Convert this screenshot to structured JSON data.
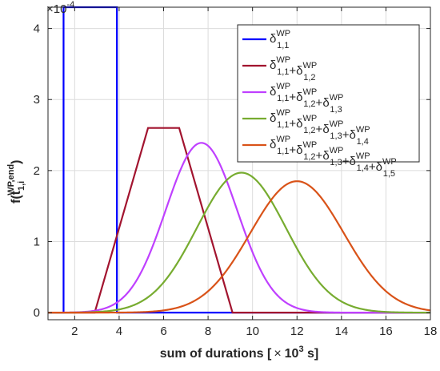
{
  "chart_data": {
    "type": "line",
    "title": "",
    "xlabel": {
      "prefix": "sum of durations [",
      "times": "×",
      "base": "10",
      "exp": "3",
      "suffix": " s]"
    },
    "ylabel": {
      "f": "f(t",
      "sub": "1,i",
      "sup": "WP,end",
      "close": ")"
    },
    "y_exponent": {
      "label": "×10",
      "exp": "-4"
    },
    "xlim": [
      0.8,
      18
    ],
    "ylim": [
      -0.1,
      4.3
    ],
    "xticks": [
      2,
      4,
      6,
      8,
      10,
      12,
      14,
      16,
      18
    ],
    "yticks": [
      0,
      1,
      2,
      3,
      4
    ],
    "grid": true,
    "legend_position": "top-right",
    "series": [
      {
        "shape": "uniform",
        "a": 1.5,
        "b": 3.9,
        "color": "#0000ff",
        "legend": [
          [
            "1,1"
          ]
        ]
      },
      {
        "shape": "trapezoid",
        "points": [
          [
            0.8,
            0
          ],
          [
            2.9,
            0
          ],
          [
            5.3,
            2.6
          ],
          [
            6.7,
            2.6
          ],
          [
            9.1,
            0
          ],
          [
            18,
            0
          ]
        ],
        "color": "#a2142f",
        "legend": [
          [
            "1,1"
          ],
          [
            "1,2"
          ]
        ]
      },
      {
        "shape": "smooth",
        "mean": 7.7,
        "sd": 1.6,
        "peak": 2.39,
        "color": "#bf40ff",
        "legend": [
          [
            "1,1"
          ],
          [
            "1,2"
          ],
          [
            "1,3"
          ]
        ]
      },
      {
        "shape": "smooth",
        "mean": 9.5,
        "sd": 2.0,
        "peak": 1.97,
        "color": "#77ac30",
        "legend": [
          [
            "1,1"
          ],
          [
            "1,2"
          ],
          [
            "1,3"
          ],
          [
            "1,4"
          ]
        ]
      },
      {
        "shape": "smooth",
        "mean": 12.0,
        "sd": 2.1,
        "peak": 1.85,
        "color": "#d95319",
        "legend": [
          [
            "1,1"
          ],
          [
            "1,2"
          ],
          [
            "1,3"
          ],
          [
            "1,4"
          ],
          [
            "1,5"
          ]
        ]
      }
    ],
    "legend_symbol": {
      "delta": "δ",
      "sup": "WP",
      "plus": "+"
    }
  }
}
